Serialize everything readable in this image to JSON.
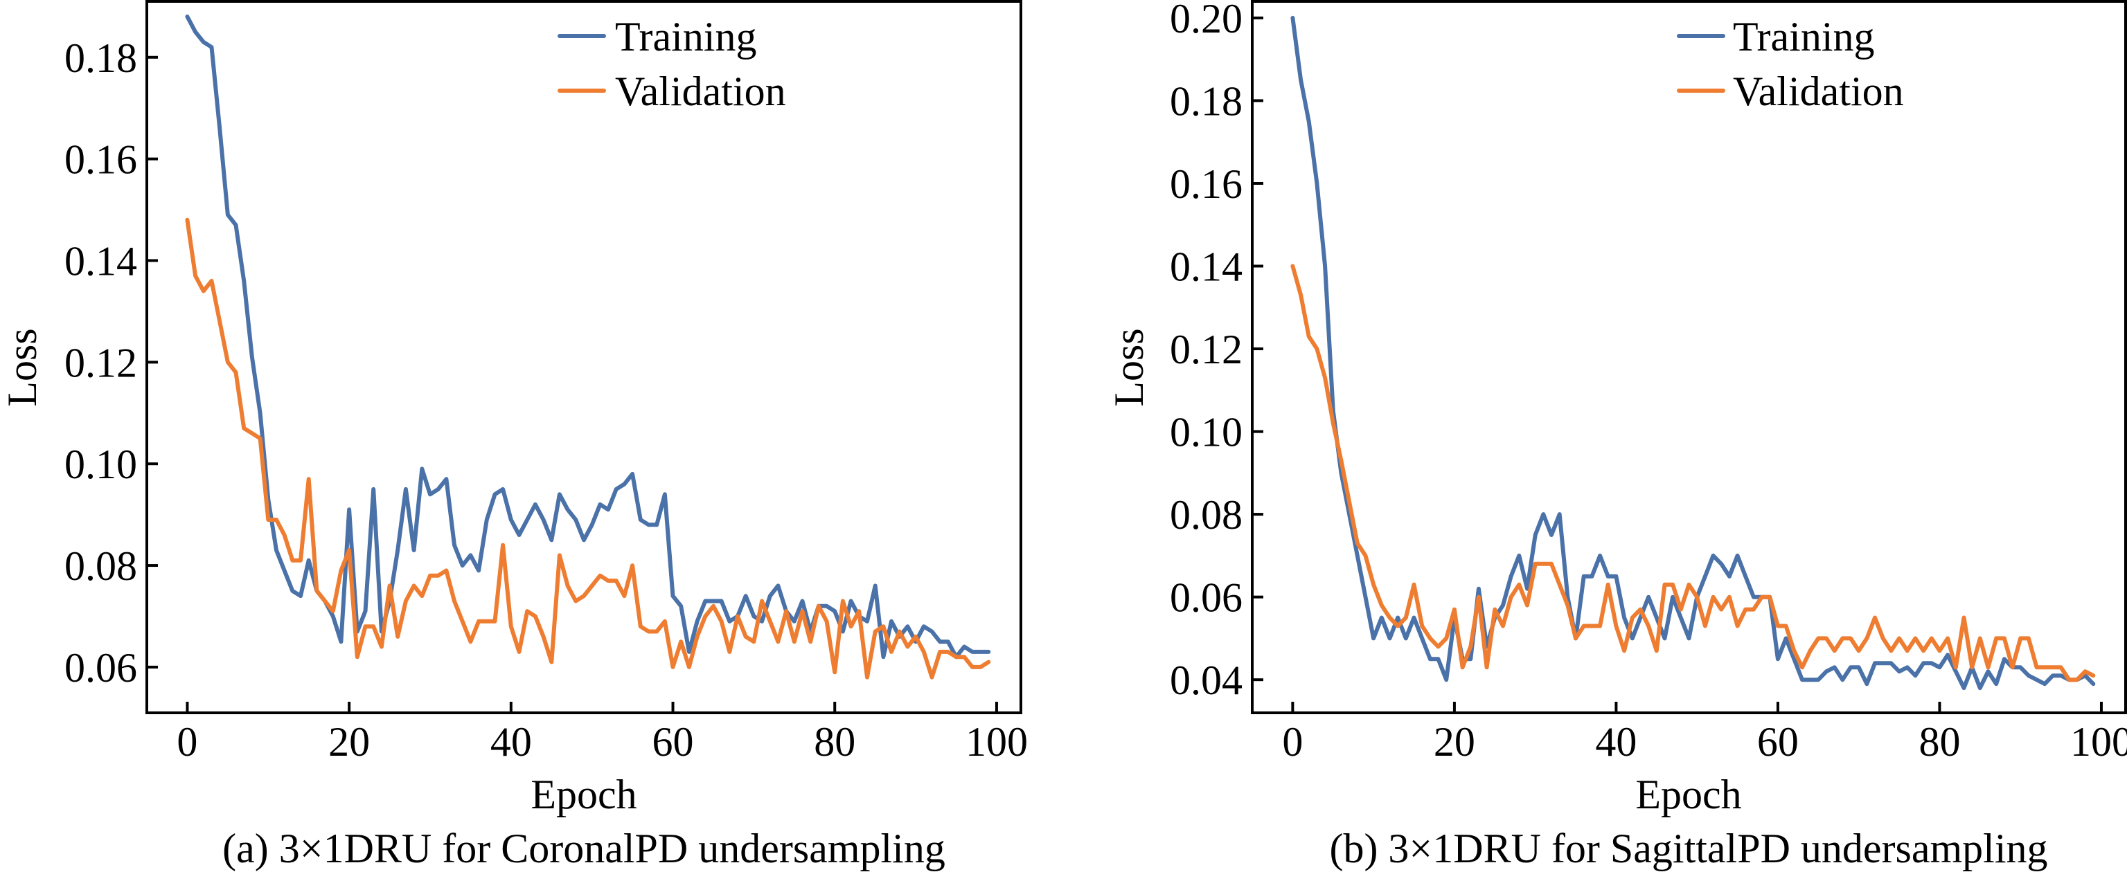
{
  "chart_data": [
    {
      "type": "line",
      "caption": "(a) 3×1DRU for CoronalPD undersampling",
      "xlabel": "Epoch",
      "ylabel": "Loss",
      "xlim": [
        -5,
        103
      ],
      "ylim": [
        0.051,
        0.191
      ],
      "xticks": [
        0,
        20,
        40,
        60,
        80,
        100
      ],
      "xtick_labels": [
        "0",
        "20",
        "40",
        "60",
        "80",
        "100"
      ],
      "yticks": [
        0.06,
        0.08,
        0.1,
        0.12,
        0.14,
        0.16,
        0.18
      ],
      "ytick_labels": [
        "0.06",
        "0.08",
        "0.10",
        "0.12",
        "0.14",
        "0.16",
        "0.18"
      ],
      "legend_position": "top-center",
      "grid": false,
      "series": [
        {
          "name": "Training",
          "color": "#4a72a8",
          "x": [
            0,
            1,
            2,
            3,
            4,
            5,
            6,
            7,
            8,
            9,
            10,
            11,
            12,
            13,
            14,
            15,
            16,
            17,
            18,
            19,
            20,
            21,
            22,
            23,
            24,
            25,
            26,
            27,
            28,
            29,
            30,
            31,
            32,
            33,
            34,
            35,
            36,
            37,
            38,
            39,
            40,
            41,
            42,
            43,
            44,
            45,
            46,
            47,
            48,
            49,
            50,
            51,
            52,
            53,
            54,
            55,
            56,
            57,
            58,
            59,
            60,
            61,
            62,
            63,
            64,
            65,
            66,
            67,
            68,
            69,
            70,
            71,
            72,
            73,
            74,
            75,
            76,
            77,
            78,
            79,
            80,
            81,
            82,
            83,
            84,
            85,
            86,
            87,
            88,
            89,
            90,
            91,
            92,
            93,
            94,
            95,
            96,
            97,
            98,
            99
          ],
          "y": [
            0.188,
            0.185,
            0.183,
            0.182,
            0.166,
            0.149,
            0.147,
            0.136,
            0.121,
            0.11,
            0.093,
            0.083,
            0.079,
            0.075,
            0.074,
            0.081,
            0.075,
            0.073,
            0.07,
            0.065,
            0.091,
            0.067,
            0.071,
            0.095,
            0.067,
            0.073,
            0.083,
            0.095,
            0.083,
            0.099,
            0.094,
            0.095,
            0.097,
            0.084,
            0.08,
            0.082,
            0.079,
            0.089,
            0.094,
            0.095,
            0.089,
            0.086,
            0.089,
            0.092,
            0.089,
            0.085,
            0.094,
            0.091,
            0.089,
            0.085,
            0.088,
            0.092,
            0.091,
            0.095,
            0.096,
            0.098,
            0.089,
            0.088,
            0.088,
            0.094,
            0.074,
            0.072,
            0.063,
            0.069,
            0.073,
            0.073,
            0.073,
            0.069,
            0.07,
            0.074,
            0.07,
            0.069,
            0.074,
            0.076,
            0.071,
            0.069,
            0.073,
            0.067,
            0.072,
            0.072,
            0.071,
            0.067,
            0.073,
            0.07,
            0.069,
            0.076,
            0.062,
            0.069,
            0.066,
            0.068,
            0.065,
            0.068,
            0.067,
            0.065,
            0.065,
            0.062,
            0.064,
            0.063,
            0.063,
            0.063
          ]
        },
        {
          "name": "Validation",
          "color": "#ee7d31",
          "x": [
            0,
            1,
            2,
            3,
            4,
            5,
            6,
            7,
            8,
            9,
            10,
            11,
            12,
            13,
            14,
            15,
            16,
            17,
            18,
            19,
            20,
            21,
            22,
            23,
            24,
            25,
            26,
            27,
            28,
            29,
            30,
            31,
            32,
            33,
            34,
            35,
            36,
            37,
            38,
            39,
            40,
            41,
            42,
            43,
            44,
            45,
            46,
            47,
            48,
            49,
            50,
            51,
            52,
            53,
            54,
            55,
            56,
            57,
            58,
            59,
            60,
            61,
            62,
            63,
            64,
            65,
            66,
            67,
            68,
            69,
            70,
            71,
            72,
            73,
            74,
            75,
            76,
            77,
            78,
            79,
            80,
            81,
            82,
            83,
            84,
            85,
            86,
            87,
            88,
            89,
            90,
            91,
            92,
            93,
            94,
            95,
            96,
            97,
            98,
            99
          ],
          "y": [
            0.148,
            0.137,
            0.134,
            0.136,
            0.128,
            0.12,
            0.118,
            0.107,
            0.106,
            0.105,
            0.089,
            0.089,
            0.086,
            0.081,
            0.081,
            0.097,
            0.075,
            0.073,
            0.071,
            0.079,
            0.083,
            0.062,
            0.068,
            0.068,
            0.064,
            0.076,
            0.066,
            0.073,
            0.076,
            0.074,
            0.078,
            0.078,
            0.079,
            0.073,
            0.069,
            0.065,
            0.069,
            0.069,
            0.069,
            0.084,
            0.068,
            0.063,
            0.071,
            0.07,
            0.066,
            0.061,
            0.082,
            0.076,
            0.073,
            0.074,
            0.076,
            0.078,
            0.077,
            0.077,
            0.074,
            0.08,
            0.068,
            0.067,
            0.067,
            0.069,
            0.06,
            0.065,
            0.06,
            0.066,
            0.07,
            0.072,
            0.069,
            0.063,
            0.07,
            0.066,
            0.065,
            0.073,
            0.069,
            0.065,
            0.071,
            0.065,
            0.071,
            0.065,
            0.072,
            0.069,
            0.059,
            0.073,
            0.068,
            0.071,
            0.058,
            0.067,
            0.068,
            0.063,
            0.067,
            0.064,
            0.066,
            0.063,
            0.058,
            0.063,
            0.063,
            0.062,
            0.062,
            0.06,
            0.06,
            0.061
          ]
        }
      ]
    },
    {
      "type": "line",
      "caption": "(b) 3×1DRU for SagittalPD undersampling",
      "xlabel": "Epoch",
      "ylabel": "Loss",
      "xlim": [
        -5,
        103
      ],
      "ylim": [
        0.032,
        0.204
      ],
      "xticks": [
        0,
        20,
        40,
        60,
        80,
        100
      ],
      "xtick_labels": [
        "0",
        "20",
        "40",
        "60",
        "80",
        "100"
      ],
      "yticks": [
        0.04,
        0.06,
        0.08,
        0.1,
        0.12,
        0.14,
        0.16,
        0.18,
        0.2
      ],
      "ytick_labels": [
        "0.04",
        "0.06",
        "0.08",
        "0.10",
        "0.12",
        "0.14",
        "0.16",
        "0.18",
        "0.20"
      ],
      "legend_position": "top-center",
      "grid": false,
      "series": [
        {
          "name": "Training",
          "color": "#4a72a8",
          "x": [
            0,
            1,
            2,
            3,
            4,
            5,
            6,
            7,
            8,
            9,
            10,
            11,
            12,
            13,
            14,
            15,
            16,
            17,
            18,
            19,
            20,
            21,
            22,
            23,
            24,
            25,
            26,
            27,
            28,
            29,
            30,
            31,
            32,
            33,
            34,
            35,
            36,
            37,
            38,
            39,
            40,
            41,
            42,
            43,
            44,
            45,
            46,
            47,
            48,
            49,
            50,
            51,
            52,
            53,
            54,
            55,
            56,
            57,
            58,
            59,
            60,
            61,
            62,
            63,
            64,
            65,
            66,
            67,
            68,
            69,
            70,
            71,
            72,
            73,
            74,
            75,
            76,
            77,
            78,
            79,
            80,
            81,
            82,
            83,
            84,
            85,
            86,
            87,
            88,
            89,
            90,
            91,
            92,
            93,
            94,
            95,
            96,
            97,
            98,
            99
          ],
          "y": [
            0.2,
            0.185,
            0.175,
            0.16,
            0.14,
            0.105,
            0.09,
            0.08,
            0.07,
            0.06,
            0.05,
            0.055,
            0.05,
            0.055,
            0.05,
            0.055,
            0.05,
            0.045,
            0.045,
            0.04,
            0.055,
            0.045,
            0.045,
            0.062,
            0.048,
            0.055,
            0.058,
            0.065,
            0.07,
            0.062,
            0.075,
            0.08,
            0.075,
            0.08,
            0.06,
            0.05,
            0.065,
            0.065,
            0.07,
            0.065,
            0.065,
            0.055,
            0.05,
            0.055,
            0.06,
            0.055,
            0.05,
            0.06,
            0.055,
            0.05,
            0.06,
            0.065,
            0.07,
            0.068,
            0.065,
            0.07,
            0.065,
            0.06,
            0.06,
            0.06,
            0.045,
            0.05,
            0.045,
            0.04,
            0.04,
            0.04,
            0.042,
            0.043,
            0.04,
            0.043,
            0.043,
            0.039,
            0.044,
            0.044,
            0.044,
            0.042,
            0.043,
            0.041,
            0.044,
            0.044,
            0.043,
            0.046,
            0.042,
            0.038,
            0.043,
            0.038,
            0.042,
            0.039,
            0.045,
            0.043,
            0.043,
            0.041,
            0.04,
            0.039,
            0.041,
            0.041,
            0.04,
            0.04,
            0.041,
            0.039
          ]
        },
        {
          "name": "Validation",
          "color": "#ee7d31",
          "x": [
            0,
            1,
            2,
            3,
            4,
            5,
            6,
            7,
            8,
            9,
            10,
            11,
            12,
            13,
            14,
            15,
            16,
            17,
            18,
            19,
            20,
            21,
            22,
            23,
            24,
            25,
            26,
            27,
            28,
            29,
            30,
            31,
            32,
            33,
            34,
            35,
            36,
            37,
            38,
            39,
            40,
            41,
            42,
            43,
            44,
            45,
            46,
            47,
            48,
            49,
            50,
            51,
            52,
            53,
            54,
            55,
            56,
            57,
            58,
            59,
            60,
            61,
            62,
            63,
            64,
            65,
            66,
            67,
            68,
            69,
            70,
            71,
            72,
            73,
            74,
            75,
            76,
            77,
            78,
            79,
            80,
            81,
            82,
            83,
            84,
            85,
            86,
            87,
            88,
            89,
            90,
            91,
            92,
            93,
            94,
            95,
            96,
            97,
            98,
            99
          ],
          "y": [
            0.14,
            0.133,
            0.123,
            0.12,
            0.113,
            0.102,
            0.093,
            0.083,
            0.073,
            0.07,
            0.063,
            0.058,
            0.055,
            0.053,
            0.055,
            0.063,
            0.053,
            0.05,
            0.048,
            0.05,
            0.057,
            0.043,
            0.048,
            0.06,
            0.043,
            0.057,
            0.053,
            0.06,
            0.063,
            0.058,
            0.068,
            0.068,
            0.068,
            0.063,
            0.058,
            0.05,
            0.053,
            0.053,
            0.053,
            0.063,
            0.053,
            0.047,
            0.055,
            0.057,
            0.053,
            0.047,
            0.063,
            0.063,
            0.057,
            0.063,
            0.06,
            0.053,
            0.06,
            0.057,
            0.06,
            0.053,
            0.057,
            0.057,
            0.06,
            0.06,
            0.053,
            0.053,
            0.047,
            0.043,
            0.047,
            0.05,
            0.05,
            0.047,
            0.05,
            0.05,
            0.047,
            0.05,
            0.055,
            0.05,
            0.047,
            0.05,
            0.047,
            0.05,
            0.047,
            0.05,
            0.047,
            0.05,
            0.043,
            0.055,
            0.043,
            0.05,
            0.043,
            0.05,
            0.05,
            0.043,
            0.05,
            0.05,
            0.043,
            0.043,
            0.043,
            0.043,
            0.04,
            0.04,
            0.042,
            0.041
          ]
        }
      ]
    }
  ]
}
